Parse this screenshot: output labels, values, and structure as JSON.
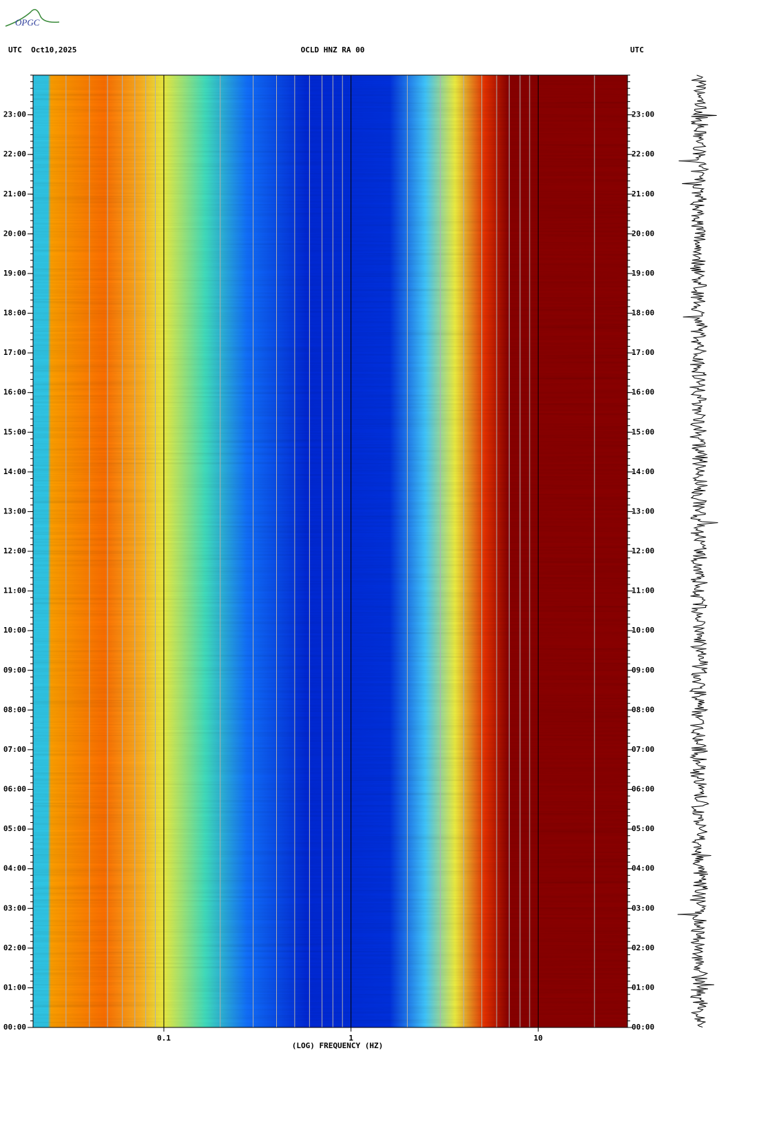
{
  "chart_data": {
    "type": "spectrogram",
    "logo": "OPGC",
    "header_left": "UTC  Oct10,2025",
    "title": "OCLD HNZ RA 00",
    "header_right": "UTC",
    "xlabel": "(LOG) FREQUENCY (HZ)",
    "xscale": "log",
    "xlim": [
      0.02,
      30
    ],
    "xticks": [
      0.1,
      1,
      10
    ],
    "ylim": [
      0,
      24
    ],
    "yticks": [
      {
        "value": 0,
        "label": "00:00"
      },
      {
        "value": 1,
        "label": "01:00"
      },
      {
        "value": 2,
        "label": "02:00"
      },
      {
        "value": 3,
        "label": "03:00"
      },
      {
        "value": 4,
        "label": "04:00"
      },
      {
        "value": 5,
        "label": "05:00"
      },
      {
        "value": 6,
        "label": "06:00"
      },
      {
        "value": 7,
        "label": "07:00"
      },
      {
        "value": 8,
        "label": "08:00"
      },
      {
        "value": 9,
        "label": "09:00"
      },
      {
        "value": 10,
        "label": "10:00"
      },
      {
        "value": 11,
        "label": "11:00"
      },
      {
        "value": 12,
        "label": "12:00"
      },
      {
        "value": 13,
        "label": "13:00"
      },
      {
        "value": 14,
        "label": "14:00"
      },
      {
        "value": 15,
        "label": "15:00"
      },
      {
        "value": 16,
        "label": "16:00"
      },
      {
        "value": 17,
        "label": "17:00"
      },
      {
        "value": 18,
        "label": "18:00"
      },
      {
        "value": 19,
        "label": "19:00"
      },
      {
        "value": 20,
        "label": "20:00"
      },
      {
        "value": 21,
        "label": "21:00"
      },
      {
        "value": 22,
        "label": "22:00"
      },
      {
        "value": 23,
        "label": "23:00"
      }
    ]
  }
}
